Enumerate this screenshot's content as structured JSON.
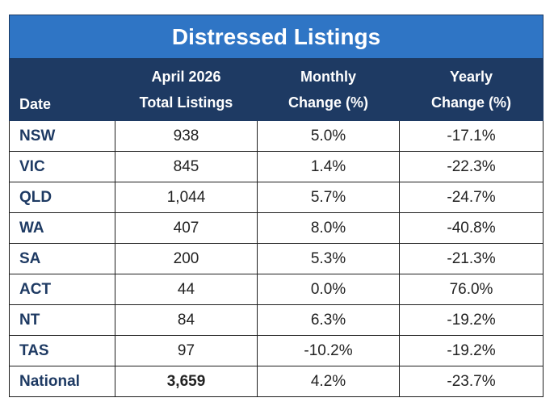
{
  "title": "Distressed Listings",
  "headers": {
    "date": "Date",
    "total_line1": "April 2026",
    "total_line2": "Total Listings",
    "monthly_line1": "Monthly",
    "monthly_line2": "Change (%)",
    "yearly_line1": "Yearly",
    "yearly_line2": "Change (%)"
  },
  "rows": [
    {
      "region": "NSW",
      "total": "938",
      "monthly": "5.0%",
      "yearly": "-17.1%"
    },
    {
      "region": "VIC",
      "total": "845",
      "monthly": "1.4%",
      "yearly": "-22.3%"
    },
    {
      "region": "QLD",
      "total": "1,044",
      "monthly": "5.7%",
      "yearly": "-24.7%"
    },
    {
      "region": "WA",
      "total": "407",
      "monthly": "8.0%",
      "yearly": "-40.8%"
    },
    {
      "region": "SA",
      "total": "200",
      "monthly": "5.3%",
      "yearly": "-21.3%"
    },
    {
      "region": "ACT",
      "total": "44",
      "monthly": "0.0%",
      "yearly": "76.0%"
    },
    {
      "region": "NT",
      "total": "84",
      "monthly": "6.3%",
      "yearly": "-19.2%"
    },
    {
      "region": "TAS",
      "total": "97",
      "monthly": "-10.2%",
      "yearly": "-19.2%"
    },
    {
      "region": "National",
      "total": "3,659",
      "monthly": "4.2%",
      "yearly": "-23.7%"
    }
  ],
  "colors": {
    "title_bg": "#2f75c5",
    "header_bg": "#1e3a63",
    "negative": "#e01b1b",
    "region_text": "#1e3a63"
  }
}
